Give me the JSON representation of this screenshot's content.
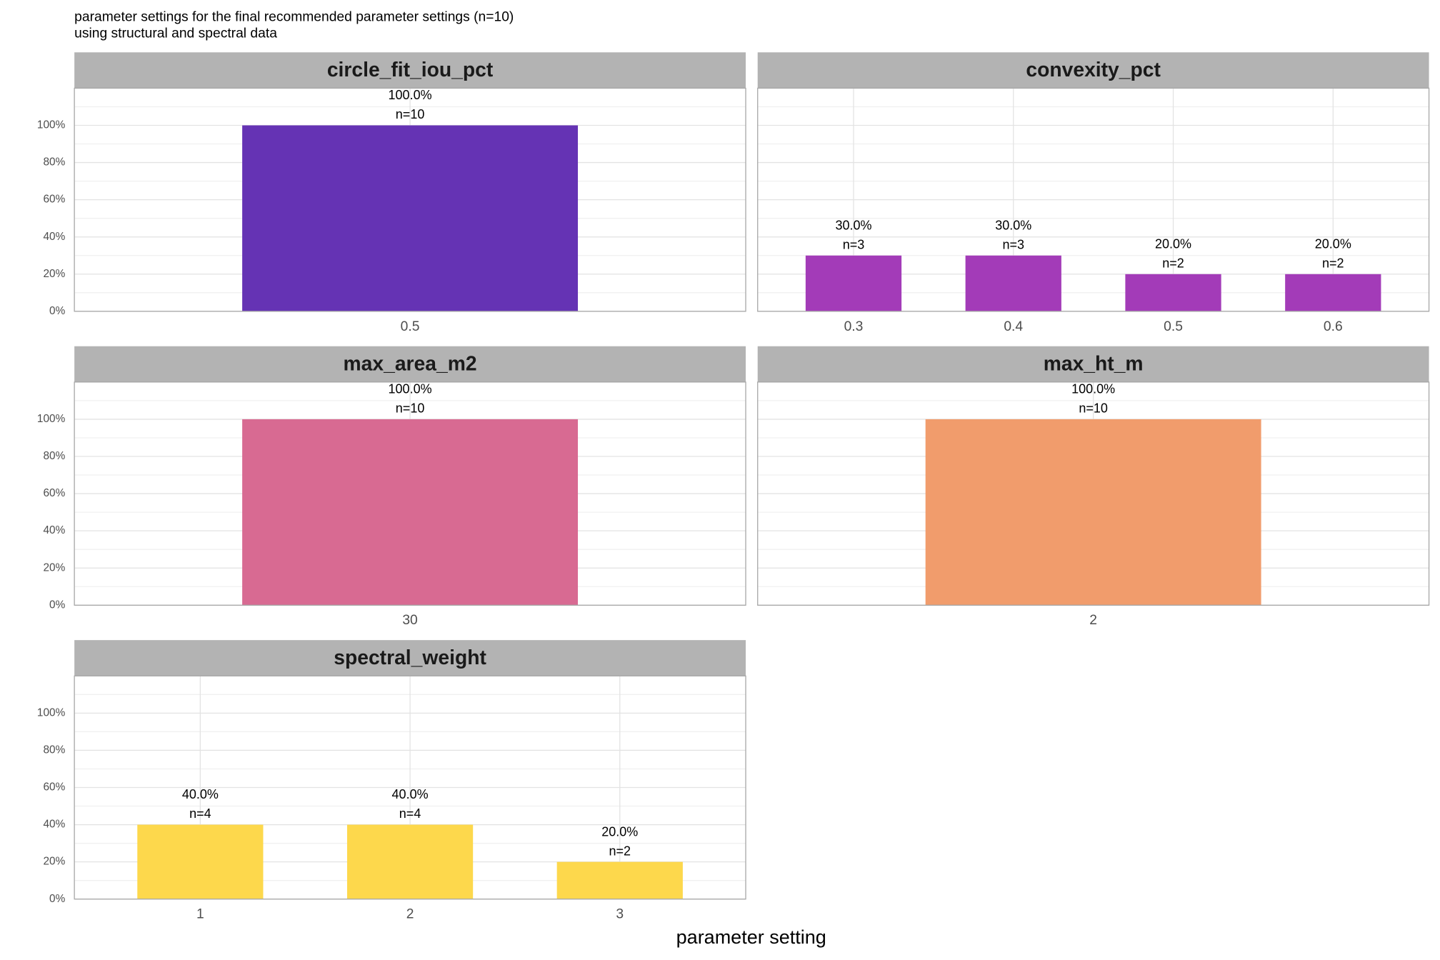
{
  "chart_data": {
    "type": "bar",
    "title": "parameter settings for the final recommended parameter settings (n=10)",
    "subtitle": "using structural and spectral data",
    "x_label": "parameter setting",
    "ylim": [
      0,
      120
    ],
    "yticks": [
      {
        "value": 0,
        "label": "0%"
      },
      {
        "value": 20,
        "label": "20%"
      },
      {
        "value": 40,
        "label": "40%"
      },
      {
        "value": 60,
        "label": "60%"
      },
      {
        "value": 80,
        "label": "80%"
      },
      {
        "value": 100,
        "label": "100%"
      }
    ],
    "grid": true,
    "facets": [
      {
        "title": "circle_fit_iou_pct",
        "color": "#6533b4",
        "categories": [
          "0.5"
        ],
        "values": [
          100
        ],
        "value_labels": [
          "100.0%"
        ],
        "count_labels": [
          "n=10"
        ]
      },
      {
        "title": "convexity_pct",
        "color": "#a33bb8",
        "categories": [
          "0.3",
          "0.4",
          "0.5",
          "0.6"
        ],
        "values": [
          30,
          30,
          20,
          20
        ],
        "value_labels": [
          "30.0%",
          "30.0%",
          "20.0%",
          "20.0%"
        ],
        "count_labels": [
          "n=3",
          "n=3",
          "n=2",
          "n=2"
        ]
      },
      {
        "title": "max_area_m2",
        "color": "#d86a92",
        "categories": [
          "30"
        ],
        "values": [
          100
        ],
        "value_labels": [
          "100.0%"
        ],
        "count_labels": [
          "n=10"
        ]
      },
      {
        "title": "max_ht_m",
        "color": "#f19c6c",
        "categories": [
          "2"
        ],
        "values": [
          100
        ],
        "value_labels": [
          "100.0%"
        ],
        "count_labels": [
          "n=10"
        ]
      },
      {
        "title": "spectral_weight",
        "color": "#fdd84c",
        "categories": [
          "1",
          "2",
          "3"
        ],
        "values": [
          40,
          40,
          20
        ],
        "value_labels": [
          "40.0%",
          "40.0%",
          "20.0%"
        ],
        "count_labels": [
          "n=4",
          "n=4",
          "n=2"
        ]
      }
    ]
  }
}
